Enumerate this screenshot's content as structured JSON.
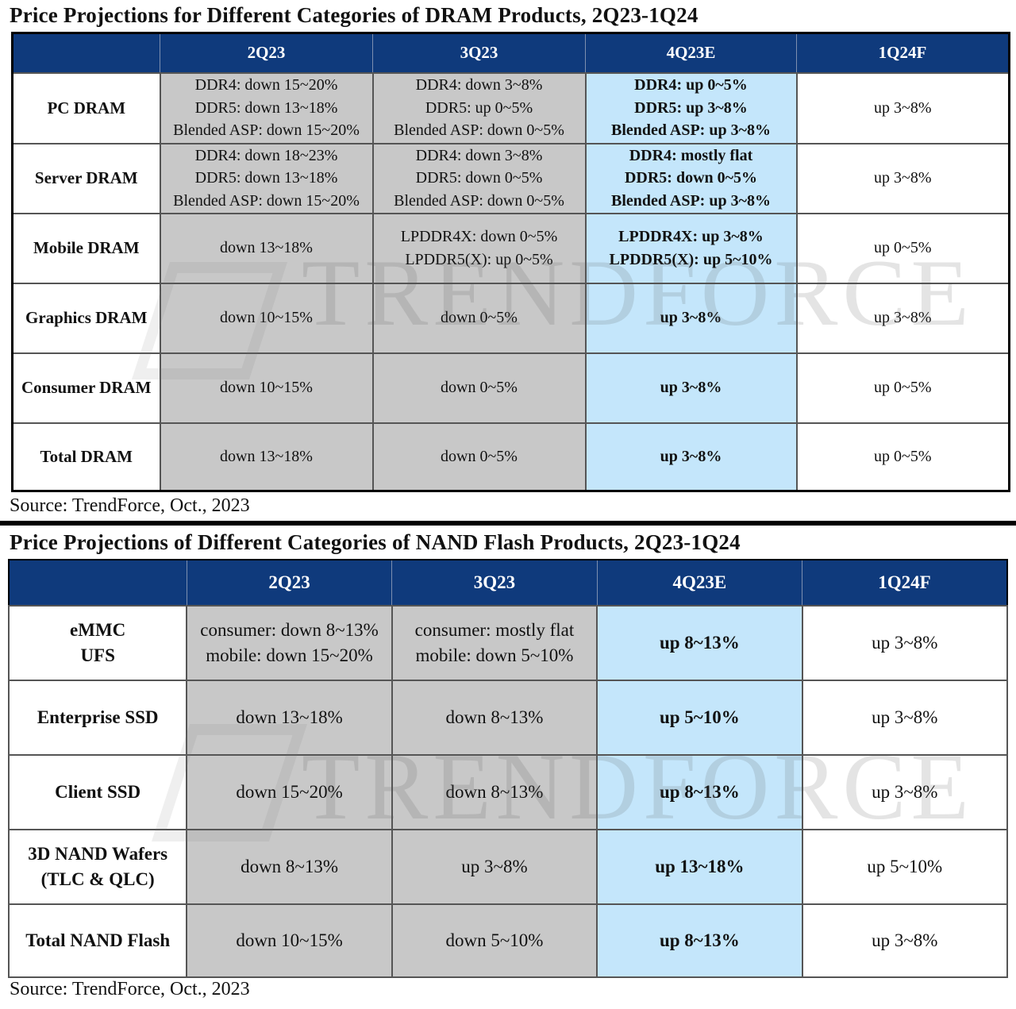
{
  "dram": {
    "title": "Price Projections for Different Categories of DRAM Products, 2Q23-1Q24",
    "headers": [
      "",
      "2Q23",
      "3Q23",
      "4Q23E",
      "1Q24F"
    ],
    "rows": [
      {
        "category": [
          "PC DRAM"
        ],
        "q2_23": [
          "DDR4: down 15~20%",
          "DDR5: down 13~18%",
          "Blended ASP: down 15~20%"
        ],
        "q3_23": [
          "DDR4: down 3~8%",
          "DDR5: up 0~5%",
          "Blended ASP: down 0~5%"
        ],
        "q4_23e": [
          "DDR4: up 0~5%",
          "DDR5:  up 3~8%",
          "Blended ASP: up 3~8%"
        ],
        "q1_24f": [
          "up  3~8%"
        ]
      },
      {
        "category": [
          "Server DRAM"
        ],
        "q2_23": [
          "DDR4: down 18~23%",
          "DDR5: down 13~18%",
          "Blended ASP: down 15~20%"
        ],
        "q3_23": [
          "DDR4: down 3~8%",
          "DDR5: down 0~5%",
          "Blended ASP: down 0~5%"
        ],
        "q4_23e": [
          "DDR4: mostly flat",
          "DDR5: down 0~5%",
          "Blended ASP: up 3~8%"
        ],
        "q1_24f": [
          "up  3~8%"
        ]
      },
      {
        "category": [
          "Mobile DRAM"
        ],
        "q2_23": [
          "down 13~18%"
        ],
        "q3_23": [
          "LPDDR4X: down 0~5%",
          "LPDDR5(X): up 0~5%"
        ],
        "q4_23e": [
          "LPDDR4X: up 3~8%",
          "LPDDR5(X): up 5~10%"
        ],
        "q1_24f": [
          "up  0~5%"
        ]
      },
      {
        "category": [
          "Graphics DRAM"
        ],
        "q2_23": [
          "down 10~15%"
        ],
        "q3_23": [
          "down 0~5%"
        ],
        "q4_23e": [
          "up  3~8%"
        ],
        "q1_24f": [
          "up  3~8%"
        ]
      },
      {
        "category": [
          "Consumer DRAM"
        ],
        "q2_23": [
          "down 10~15%"
        ],
        "q3_23": [
          "down 0~5%"
        ],
        "q4_23e": [
          "up  3~8%"
        ],
        "q1_24f": [
          "up  0~5%"
        ]
      },
      {
        "category": [
          "Total DRAM"
        ],
        "q2_23": [
          "down 13~18%"
        ],
        "q3_23": [
          "down 0~5%"
        ],
        "q4_23e": [
          "up  3~8%"
        ],
        "q1_24f": [
          "up  0~5%"
        ]
      }
    ],
    "source": "Source: TrendForce, Oct., 2023"
  },
  "nand": {
    "title": "Price Projections of Different Categories of NAND Flash Products, 2Q23-1Q24",
    "headers": [
      "",
      "2Q23",
      "3Q23",
      "4Q23E",
      "1Q24F"
    ],
    "rows": [
      {
        "category": [
          "eMMC",
          "UFS"
        ],
        "q2_23": [
          "consumer: down 8~13%",
          "mobile: down 15~20%"
        ],
        "q3_23": [
          "consumer: mostly flat",
          "mobile: down 5~10%"
        ],
        "q4_23e": [
          "up 8~13%"
        ],
        "q1_24f": [
          "up 3~8%"
        ]
      },
      {
        "category": [
          "Enterprise SSD"
        ],
        "q2_23": [
          "down 13~18%"
        ],
        "q3_23": [
          "down 8~13%"
        ],
        "q4_23e": [
          "up 5~10%"
        ],
        "q1_24f": [
          "up 3~8%"
        ]
      },
      {
        "category": [
          "Client SSD"
        ],
        "q2_23": [
          "down 15~20%"
        ],
        "q3_23": [
          "down 8~13%"
        ],
        "q4_23e": [
          "up 8~13%"
        ],
        "q1_24f": [
          "up 3~8%"
        ]
      },
      {
        "category": [
          "3D NAND Wafers",
          "(TLC & QLC)"
        ],
        "q2_23": [
          "down 8~13%"
        ],
        "q3_23": [
          "up 3~8%"
        ],
        "q4_23e": [
          "up 13~18%"
        ],
        "q1_24f": [
          "up 5~10%"
        ]
      },
      {
        "category": [
          "Total NAND Flash"
        ],
        "q2_23": [
          "down 10~15%"
        ],
        "q3_23": [
          "down 5~10%"
        ],
        "q4_23e": [
          "up 8~13%"
        ],
        "q1_24f": [
          "up 3~8%"
        ]
      }
    ],
    "source": "Source: TrendForce, Oct., 2023"
  },
  "watermark": "TRENDFORCE",
  "colors": {
    "header_bg": "#0f3a7c",
    "past_quarter_bg": "#c8c8c8",
    "estimate_bg": "#c4e6fb"
  }
}
